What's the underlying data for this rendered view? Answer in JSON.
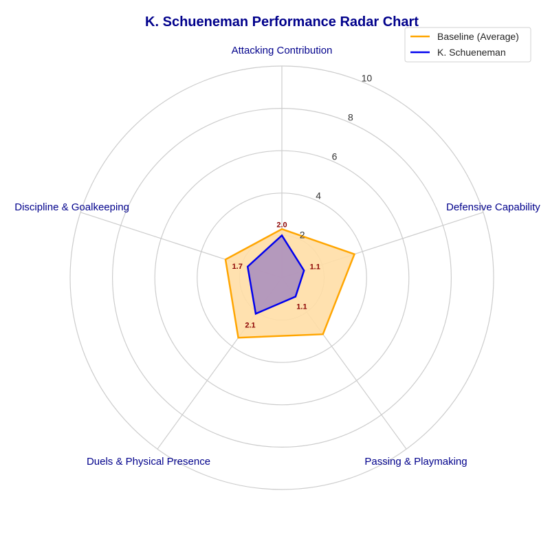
{
  "chart_data": {
    "type": "radar",
    "title": "K. Schueneman Performance Radar Chart",
    "categories": [
      "Attacking Contribution",
      "Defensive Capability",
      "Passing & Playmaking",
      "Duels & Physical Presence",
      "Discipline & Goalkeeping"
    ],
    "rlim": [
      0,
      10
    ],
    "radial_ticks": [
      2,
      4,
      6,
      8,
      10
    ],
    "radial_tick_labels": [
      "2",
      "4",
      "6",
      "8",
      "10"
    ],
    "grid": true,
    "legend_position": "top-right",
    "series": [
      {
        "name": "Baseline (Average)",
        "values": [
          2.3,
          3.6,
          3.3,
          3.5,
          2.8
        ],
        "color": "#FFA500",
        "fill": "#FFDEA6"
      },
      {
        "name": "K. Schueneman",
        "values": [
          2.0,
          1.1,
          1.1,
          2.1,
          1.7
        ],
        "color": "#0000EE",
        "fill": "#A78CBE",
        "data_labels": [
          "2.0",
          "1.1",
          "1.1",
          "2.1",
          "1.7"
        ]
      }
    ],
    "colors": {
      "title": "#00008B",
      "axis_label": "#00008B",
      "data_label": "#8B0000",
      "grid": "#CCCCCC"
    }
  }
}
